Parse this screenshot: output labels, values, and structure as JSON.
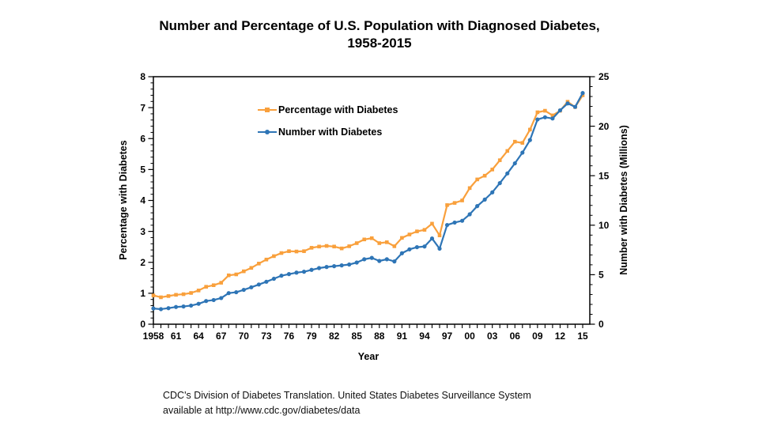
{
  "title": {
    "line1": "Number and Percentage of U.S. Population with Diagnosed Diabetes,",
    "line2": "1958-2015"
  },
  "source": {
    "line1": "CDC's Division of Diabetes Translation. United States Diabetes Surveillance System",
    "line2": "available at http://www.cdc.gov/diabetes/data"
  },
  "chart_data": {
    "type": "line",
    "title": "Number and Percentage of U.S. Population with Diagnosed Diabetes, 1958-2015",
    "xlabel": "Year",
    "x_start_year": 1958,
    "x_end_year": 2015,
    "x_tick_labels": [
      "1958",
      "61",
      "64",
      "67",
      "70",
      "73",
      "76",
      "79",
      "82",
      "85",
      "88",
      "91",
      "94",
      "97",
      "00",
      "03",
      "06",
      "09",
      "12",
      "15"
    ],
    "left_axis": {
      "label": "Percentage with Diabetes",
      "range": [
        0,
        8
      ],
      "major_ticks": [
        0,
        1,
        2,
        3,
        4,
        5,
        6,
        7,
        8
      ],
      "minor_step": 0.2
    },
    "right_axis": {
      "label": "Number with Diabetes (Millions)",
      "range": [
        0,
        25
      ],
      "major_ticks": [
        0,
        5,
        10,
        15,
        20,
        25
      ],
      "minor_step": 1
    },
    "grid": false,
    "legend_position": "inside-top-center",
    "series": [
      {
        "name": "Percentage with Diabetes",
        "axis": "left",
        "color": "#F9A03C",
        "marker": "square",
        "values": [
          0.93,
          0.87,
          0.91,
          0.95,
          0.97,
          1.01,
          1.09,
          1.21,
          1.26,
          1.34,
          1.58,
          1.61,
          1.71,
          1.82,
          1.96,
          2.09,
          2.2,
          2.3,
          2.36,
          2.35,
          2.36,
          2.47,
          2.51,
          2.53,
          2.51,
          2.45,
          2.52,
          2.62,
          2.74,
          2.78,
          2.62,
          2.65,
          2.52,
          2.79,
          2.9,
          3.0,
          3.05,
          3.25,
          2.87,
          3.85,
          3.92,
          4.0,
          4.4,
          4.68,
          4.8,
          5.0,
          5.3,
          5.6,
          5.9,
          5.86,
          6.29,
          6.85,
          6.9,
          6.75,
          6.9,
          7.19,
          7.02,
          7.4
        ]
      },
      {
        "name": "Number with Diabetes",
        "axis": "right",
        "color": "#2E75B6",
        "marker": "circle",
        "values": [
          1.59,
          1.52,
          1.62,
          1.74,
          1.79,
          1.88,
          2.06,
          2.34,
          2.44,
          2.64,
          3.14,
          3.23,
          3.47,
          3.73,
          4.01,
          4.29,
          4.59,
          4.9,
          5.06,
          5.21,
          5.3,
          5.49,
          5.67,
          5.78,
          5.86,
          5.94,
          6.03,
          6.23,
          6.56,
          6.7,
          6.39,
          6.56,
          6.34,
          7.17,
          7.56,
          7.78,
          7.85,
          8.66,
          7.63,
          10.02,
          10.27,
          10.45,
          11.1,
          11.93,
          12.59,
          13.32,
          14.25,
          15.23,
          16.25,
          17.33,
          18.6,
          20.68,
          20.9,
          20.78,
          21.6,
          22.3,
          21.95,
          23.35
        ]
      }
    ]
  }
}
